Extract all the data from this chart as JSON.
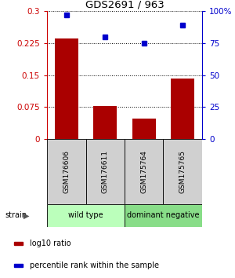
{
  "title": "GDS2691 / 963",
  "samples": [
    "GSM176606",
    "GSM176611",
    "GSM175764",
    "GSM175765"
  ],
  "bar_values": [
    0.235,
    0.078,
    0.047,
    0.142
  ],
  "percentile_values": [
    97,
    80,
    75,
    89
  ],
  "bar_color": "#aa0000",
  "marker_color": "#0000cc",
  "ylim_left": [
    0,
    0.3
  ],
  "ylim_right": [
    0,
    100
  ],
  "yticks_left": [
    0,
    0.075,
    0.15,
    0.225,
    0.3
  ],
  "yticks_left_labels": [
    "0",
    "0.075",
    "0.15",
    "0.225",
    "0.3"
  ],
  "yticks_right": [
    0,
    25,
    50,
    75,
    100
  ],
  "yticks_right_labels": [
    "0",
    "25",
    "50",
    "75",
    "100%"
  ],
  "groups": [
    {
      "label": "wild type",
      "indices": [
        0,
        1
      ],
      "color": "#bbffbb"
    },
    {
      "label": "dominant negative",
      "indices": [
        2,
        3
      ],
      "color": "#88dd88"
    }
  ],
  "legend_items": [
    {
      "color": "#aa0000",
      "label": "log10 ratio"
    },
    {
      "color": "#0000cc",
      "label": "percentile rank within the sample"
    }
  ],
  "bar_width": 0.6,
  "label_gray": "#d0d0d0",
  "bg_color": "#ffffff"
}
